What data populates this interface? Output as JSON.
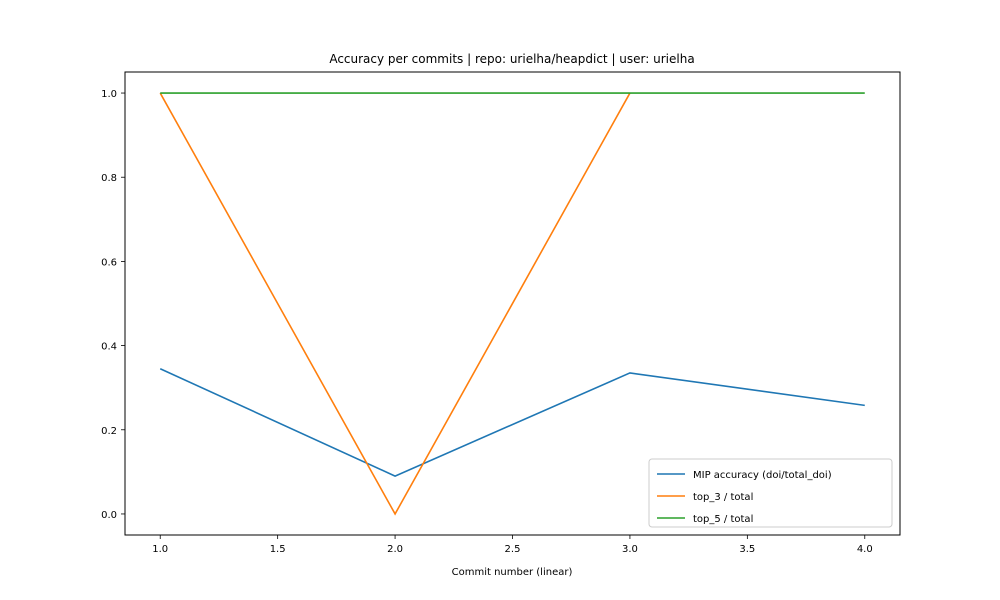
{
  "chart_data": {
    "type": "line",
    "title": "Accuracy per commits | repo: urielha/heapdict | user: urielha",
    "xlabel": "Commit number (linear)",
    "ylabel": "",
    "x": [
      1,
      2,
      3,
      4
    ],
    "xlim": [
      0.85,
      4.15
    ],
    "ylim": [
      -0.05,
      1.05
    ],
    "xticks": [
      1.0,
      1.5,
      2.0,
      2.5,
      3.0,
      3.5,
      4.0
    ],
    "xtick_labels": [
      "1.0",
      "1.5",
      "2.0",
      "2.5",
      "3.0",
      "3.5",
      "4.0"
    ],
    "yticks": [
      0.0,
      0.2,
      0.4,
      0.6,
      0.8,
      1.0
    ],
    "ytick_labels": [
      "0.0",
      "0.2",
      "0.4",
      "0.6",
      "0.8",
      "1.0"
    ],
    "grid": false,
    "legend_position": "bottom-right",
    "series": [
      {
        "name": "MIP accuracy (doi/total_doi)",
        "color": "#1f77b4",
        "values": [
          0.345,
          0.09,
          0.335,
          0.258
        ]
      },
      {
        "name": "top_3 / total",
        "color": "#ff7f0e",
        "values": [
          1.0,
          0.0,
          1.0,
          null
        ]
      },
      {
        "name": "top_5 / total",
        "color": "#2ca02c",
        "values": [
          1.0,
          1.0,
          1.0,
          1.0
        ]
      }
    ]
  }
}
